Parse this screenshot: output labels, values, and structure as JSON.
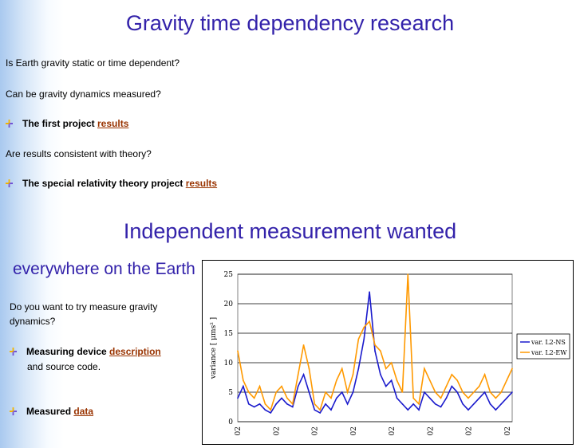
{
  "heading_main": "Gravity time dependency research",
  "q1": "Is Earth gravity static or time dependent?",
  "q2": "Can be gravity dynamics measured?",
  "project1": {
    "text": "The first project ",
    "link": "results"
  },
  "q3": "Are results consistent with theory?",
  "project2": {
    "text": "The special relativity theory project ",
    "link": "results"
  },
  "heading_second": "Independent measurement wanted",
  "subheading": "everywhere on the Earth",
  "invite": "Do you want to try measure gravity dynamics?",
  "device": {
    "text": "Measuring device ",
    "link": "description",
    "suffix": "and source code."
  },
  "measured": {
    "text": "Measured ",
    "link": "data"
  },
  "chart_data": {
    "type": "line",
    "ylabel": "variance [ μms² ]",
    "ylim": [
      0,
      25
    ],
    "yticks": [
      0,
      5,
      10,
      15,
      20,
      25
    ],
    "grid": true,
    "legend_position": "right",
    "xtick_labels": [
      "02",
      "02",
      "02",
      "02",
      "02",
      "02",
      "02",
      "02"
    ],
    "series": [
      {
        "name": "var. L2-NS",
        "color": "#1a1acc",
        "x": [
          0,
          2,
          4,
          6,
          8,
          10,
          12,
          14,
          16,
          18,
          20,
          22,
          24,
          26,
          28,
          30,
          32,
          34,
          36,
          38,
          40,
          42,
          44,
          46,
          48,
          50,
          52,
          54,
          56,
          58,
          60,
          62,
          64,
          66,
          68,
          70,
          72,
          74,
          76,
          78,
          80,
          82,
          84,
          86,
          88,
          90,
          92,
          94,
          96,
          98,
          100
        ],
        "values": [
          4,
          6,
          3,
          2.5,
          3,
          2,
          1.5,
          3,
          4,
          3,
          2.5,
          6,
          8,
          5,
          2,
          1.5,
          3,
          2,
          4,
          5,
          3,
          5,
          9,
          14,
          22,
          12,
          8,
          6,
          7,
          4,
          3,
          2,
          3,
          2,
          5,
          4,
          3,
          2.5,
          4,
          6,
          5,
          3,
          2,
          3,
          4,
          5,
          3,
          2,
          3,
          4,
          5
        ]
      },
      {
        "name": "var. L2-EW",
        "color": "#ff9900",
        "x": [
          0,
          2,
          4,
          6,
          8,
          10,
          12,
          14,
          16,
          18,
          20,
          22,
          24,
          26,
          28,
          30,
          32,
          34,
          36,
          38,
          40,
          42,
          44,
          46,
          48,
          50,
          52,
          54,
          56,
          58,
          60,
          62,
          64,
          66,
          68,
          70,
          72,
          74,
          76,
          78,
          80,
          82,
          84,
          86,
          88,
          90,
          92,
          94,
          96,
          98,
          100
        ],
        "values": [
          12,
          7,
          5,
          4,
          6,
          3,
          2,
          5,
          6,
          4,
          3,
          8,
          13,
          9,
          3,
          2,
          5,
          4,
          7,
          9,
          5,
          8,
          14,
          16,
          17,
          13,
          12,
          9,
          10,
          7,
          5,
          25,
          4,
          3,
          9,
          7,
          5,
          4,
          6,
          8,
          7,
          5,
          4,
          5,
          6,
          8,
          5,
          4,
          5,
          7,
          9
        ]
      }
    ]
  }
}
